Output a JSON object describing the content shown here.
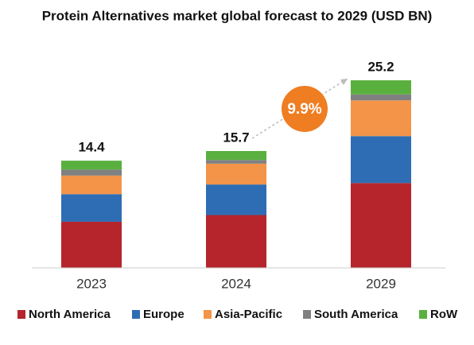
{
  "chart_data": {
    "type": "stacked_bar",
    "title": "Protein Alternatives market global forecast to 2029 (USD BN)",
    "categories": [
      "2023",
      "2024",
      "2029"
    ],
    "totals": [
      14.4,
      15.7,
      25.2
    ],
    "annotation": "9.9%",
    "series": [
      {
        "name": "North America",
        "color": "#b5252b",
        "values": [
          6.2,
          7.1,
          11.4
        ]
      },
      {
        "name": "Europe",
        "color": "#2e6db4",
        "values": [
          3.7,
          4.1,
          6.3
        ]
      },
      {
        "name": "Asia-Pacific",
        "color": "#f39449",
        "values": [
          2.5,
          2.8,
          4.8
        ]
      },
      {
        "name": "South America",
        "color": "#808080",
        "values": [
          0.8,
          0.5,
          0.8
        ]
      },
      {
        "name": "RoW",
        "color": "#5ab03f",
        "values": [
          1.2,
          1.2,
          1.9
        ]
      }
    ]
  }
}
